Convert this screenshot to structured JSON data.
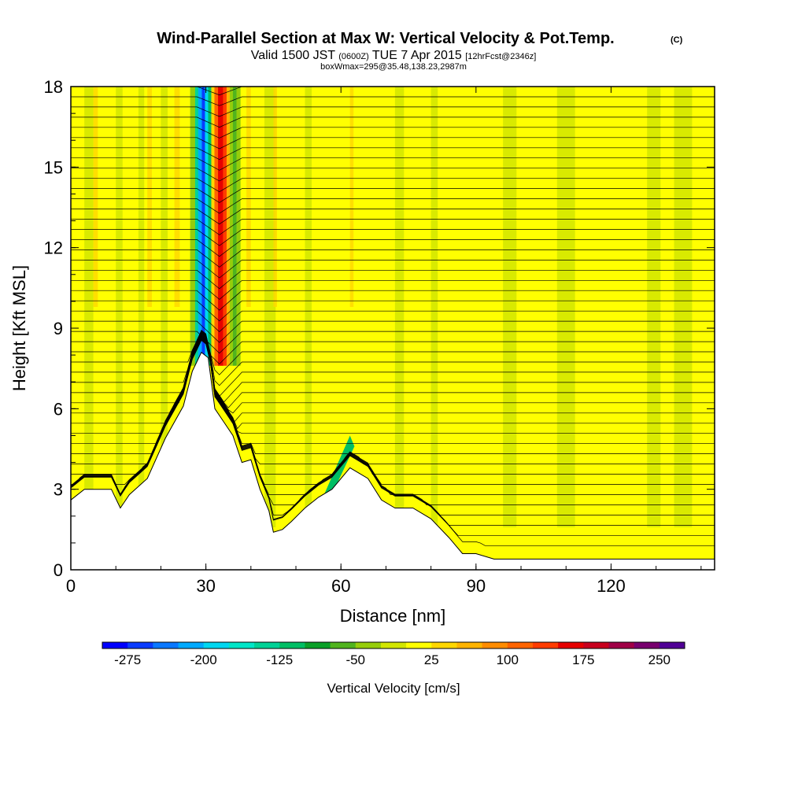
{
  "title": {
    "main": "Wind-Parallel Section at Max W: Vertical Velocity & Pot.Temp.",
    "copyright": "(C)",
    "valid_prefix": "Valid 1500 JST",
    "valid_z": "(0600Z)",
    "valid_date": "TUE 7 Apr 2015",
    "forecast": "[12hrFcst@2346z]",
    "box": "boxWmax=295@35.48,138.23,2987m"
  },
  "chart_data": {
    "type": "heatmap",
    "title": "Wind-Parallel Section at Max W: Vertical Velocity & Pot.Temp.",
    "xlabel": "Distance [nm]",
    "ylabel": "Height [Kft MSL]",
    "xlim": [
      0,
      143
    ],
    "ylim": [
      0,
      18
    ],
    "x_ticks": [
      "0",
      "30",
      "60",
      "90",
      "120"
    ],
    "y_ticks": [
      "0",
      "3",
      "6",
      "9",
      "12",
      "15",
      "18"
    ],
    "colorbar": {
      "label": "Vertical Velocity [cm/s]",
      "tick_labels": [
        "-275",
        "-200",
        "-125",
        "-50",
        "25",
        "100",
        "175",
        "250"
      ],
      "range": [
        -300,
        275
      ],
      "colors": [
        "#0000ff",
        "#0a3cff",
        "#0a78ff",
        "#00aaff",
        "#00d7f0",
        "#00e6c8",
        "#00d296",
        "#00be64",
        "#0aa028",
        "#50b41e",
        "#96cd0a",
        "#d2e600",
        "#ffff00",
        "#ffd700",
        "#ffb400",
        "#ff8c00",
        "#ff6400",
        "#ff3c00",
        "#e60000",
        "#c8001e",
        "#a00046",
        "#78006e",
        "#500096"
      ]
    },
    "terrain_profile": [
      {
        "x": 0,
        "h": 2.6
      },
      {
        "x": 3,
        "h": 3.0
      },
      {
        "x": 9,
        "h": 3.0
      },
      {
        "x": 11,
        "h": 2.3
      },
      {
        "x": 13,
        "h": 2.8
      },
      {
        "x": 17,
        "h": 3.4
      },
      {
        "x": 21,
        "h": 4.9
      },
      {
        "x": 25,
        "h": 6.1
      },
      {
        "x": 27,
        "h": 7.4
      },
      {
        "x": 29,
        "h": 8.1
      },
      {
        "x": 30.5,
        "h": 7.9
      },
      {
        "x": 32,
        "h": 6.0
      },
      {
        "x": 34,
        "h": 5.5
      },
      {
        "x": 36,
        "h": 5.0
      },
      {
        "x": 38,
        "h": 4.0
      },
      {
        "x": 40,
        "h": 4.1
      },
      {
        "x": 42,
        "h": 3.0
      },
      {
        "x": 44,
        "h": 2.2
      },
      {
        "x": 45,
        "h": 1.4
      },
      {
        "x": 47,
        "h": 1.5
      },
      {
        "x": 49,
        "h": 1.8
      },
      {
        "x": 52,
        "h": 2.3
      },
      {
        "x": 55,
        "h": 2.7
      },
      {
        "x": 58,
        "h": 3.0
      },
      {
        "x": 62,
        "h": 3.8
      },
      {
        "x": 66,
        "h": 3.4
      },
      {
        "x": 69,
        "h": 2.6
      },
      {
        "x": 72,
        "h": 2.3
      },
      {
        "x": 76,
        "h": 2.3
      },
      {
        "x": 80,
        "h": 1.9
      },
      {
        "x": 84,
        "h": 1.2
      },
      {
        "x": 87,
        "h": 0.6
      },
      {
        "x": 90,
        "h": 0.6
      },
      {
        "x": 94,
        "h": 0.4
      },
      {
        "x": 143,
        "h": 0.4
      }
    ]
  }
}
